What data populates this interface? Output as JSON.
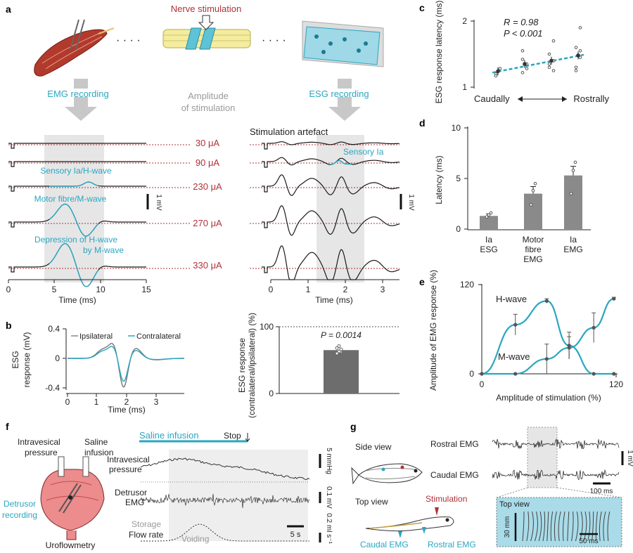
{
  "panel_labels": {
    "a": "a",
    "b": "b",
    "c": "c",
    "d": "d",
    "e": "e",
    "f": "f",
    "g": "g"
  },
  "panel_a": {
    "nerve_stimulation": "Nerve stimulation",
    "emg_recording": "EMG recording",
    "esg_recording": "ESG recording",
    "amplitude_label_1": "Amplitude",
    "amplitude_label_2": "of stimulation",
    "dots": "· · · ·",
    "amplitudes": [
      "30 μA",
      "90 μA",
      "230 μA",
      "270 μA",
      "330 μA"
    ],
    "trace_labels": {
      "sensory_h": "Sensory Ia/H-wave",
      "motor_m": "Motor fibre/M-wave",
      "depression_1": "Depression of H-wave",
      "depression_2": "by M-wave",
      "stim_artefact": "Stimulation artefact",
      "sensory_ia": "Sensory Ia"
    },
    "scale_left": "1 mV",
    "scale_right": "1 mV",
    "x_axis_left": {
      "ticks": [
        "0",
        "5",
        "10",
        "15"
      ],
      "label": "Time (ms)"
    },
    "x_axis_right": {
      "ticks": [
        "0",
        "1",
        "2",
        "3"
      ],
      "label": "Time (ms)"
    }
  },
  "panel_b": {
    "ylabel_1": "ESG",
    "ylabel_2": "response (mV)",
    "legend": [
      "Ipsilateral",
      "Contralateral"
    ],
    "yticks": [
      "0.4",
      "0",
      "-0.4"
    ],
    "xticks": [
      "0",
      "1",
      "2",
      "3"
    ],
    "xlabel": "Time (ms)",
    "bar_ylabel_1": "ESG response",
    "bar_ylabel_2": "(contralateral/ipsilateral) (%)",
    "bar_yticks": [
      "100",
      "0"
    ],
    "p_value": "P = 0.0014"
  },
  "panel_f": {
    "intravesical_1": "Intravesical",
    "intravesical_2": "pressure",
    "saline_1": "Saline",
    "saline_2": "infusion",
    "detrusor_1": "Detrusor",
    "detrusor_2": "recording",
    "uroflowmetry": "Uroflowmetry",
    "saline_infusion": "Saline infusion",
    "stop": "Stop",
    "trace_intravesical_1": "Intravesical",
    "trace_intravesical_2": "pressure",
    "trace_detrusor_1": "Detrusor",
    "trace_detrusor_2": "EMG",
    "storage": "Storage",
    "flow_rate": "Flow rate",
    "voiding": "Voiding",
    "scale_pressure": "5 mmHg",
    "scale_emg": "0.1 mV",
    "scale_flow": "0.2 ml s⁻¹",
    "scale_time": "5 s"
  },
  "panel_g": {
    "side_view": "Side view",
    "top_view": "Top view",
    "stimulation": "Stimulation",
    "caudal_emg_label": "Caudal EMG",
    "rostral_emg_label": "Rostral EMG",
    "rostral_trace": "Rostral EMG",
    "caudal_trace": "Caudal EMG",
    "scale_mv": "1 mV",
    "scale_ms": "100 ms",
    "inset_top_view": "Top view",
    "inset_mm": "30 mm",
    "inset_ms": "50 ms"
  },
  "chart_data": [
    {
      "type": "scatter",
      "panel": "c",
      "ylabel": "ESG response latency (ms)",
      "xlabel_left": "Caudally",
      "xlabel_right": "Rostrally",
      "yticks": [
        "1",
        "2"
      ],
      "ylim": [
        1,
        2
      ],
      "annotation_r": "R = 0.98",
      "annotation_p": "P < 0.001",
      "x": [
        1,
        2,
        3,
        4
      ],
      "means": [
        1.24,
        1.35,
        1.4,
        1.48
      ],
      "points": [
        [
          1.2,
          1.28,
          1.17
        ],
        [
          1.22,
          1.35,
          1.42,
          1.28,
          1.55
        ],
        [
          1.3,
          1.4,
          1.5,
          1.7,
          1.35,
          1.25
        ],
        [
          1.3,
          1.45,
          1.6,
          1.9,
          1.25,
          1.55
        ]
      ],
      "fit": [
        1.22,
        1.49
      ]
    },
    {
      "type": "bar",
      "panel": "d",
      "ylabel": "Latency (ms)",
      "yticks": [
        "0",
        "5",
        "10"
      ],
      "ylim": [
        0,
        10
      ],
      "categories": [
        [
          "Ia",
          "ESG"
        ],
        [
          "Motor",
          "fibre",
          "EMG"
        ],
        [
          "Ia",
          "EMG"
        ]
      ],
      "values": [
        1.3,
        3.5,
        5.3
      ],
      "errors": [
        0.2,
        0.7,
        0.9
      ],
      "points": [
        [
          1.2,
          1.4,
          1.6
        ],
        [
          2.4,
          3.8,
          4.5
        ],
        [
          3.5,
          5.8,
          6.6
        ]
      ]
    },
    {
      "type": "line",
      "panel": "e",
      "ylabel": "Amplitude of EMG response (%)",
      "xlabel": "Amplitude of stimulation (%)",
      "xticks": [
        "0",
        "120"
      ],
      "yticks": [
        "0",
        "120"
      ],
      "xlim": [
        0,
        120
      ],
      "ylim": [
        0,
        120
      ],
      "series": [
        {
          "name": "H-wave",
          "x": [
            0,
            30,
            58,
            78,
            100,
            118
          ],
          "y": [
            0,
            66,
            98,
            38,
            0,
            0
          ],
          "err": [
            0,
            14,
            3,
            18,
            0,
            0
          ]
        },
        {
          "name": "M-wave",
          "x": [
            0,
            30,
            58,
            78,
            100,
            118
          ],
          "y": [
            0,
            0,
            20,
            35,
            62,
            101
          ],
          "err": [
            0,
            0,
            20,
            15,
            20,
            2
          ]
        }
      ]
    },
    {
      "type": "bar",
      "panel": "b-right",
      "values": [
        65
      ],
      "error": 4,
      "points": [
        60,
        63,
        66,
        68,
        71
      ],
      "ylim": [
        0,
        100
      ]
    }
  ]
}
